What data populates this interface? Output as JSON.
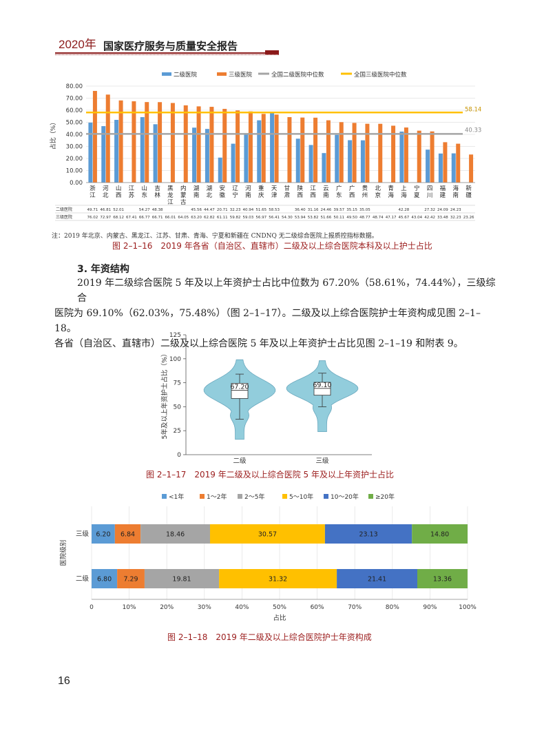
{
  "header": {
    "year": "2020年",
    "title": "国家医疗服务与质量安全报告"
  },
  "page_number": "16",
  "fig16": {
    "caption": "图 2–1–16　2019 年各省（自治区、直辖市）二级及以上综合医院本科及以上护士占比",
    "note": "注：2019 年北京、内蒙古、黑龙江、江苏、甘肃、青海、宁夏和新疆在 CNDNQ 无二级综合医院上报质控指标数据。"
  },
  "section": {
    "heading": "3. 年资结构",
    "lines": [
      "2019 年二级综合医院 5 年及以上年资护士占比中位数为 67.20%（58.61%，74.44%），三级综合",
      "医院为 69.10%（62.03%，75.48%）（图 2–1–17）。二级及以上综合医院护士年资构成见图 2–1–18。",
      "各省（自治区、直辖市）二级及以上综合医院 5 年及以上年资护士占比见图 2–1–19 和附表 9。"
    ]
  },
  "fig17": {
    "caption": "图 2–1–17　2019 年二级及以上综合医院 5 年及以上年资护士占比"
  },
  "fig18": {
    "caption": "图 2–1–18　2019 年二级及以上综合医院护士年资构成"
  },
  "colors": {
    "blue": "#5b9bd5",
    "orange": "#ed7d31",
    "gray": "#a5a5a5",
    "yellow": "#ffc000",
    "darkblue": "#4472c4",
    "green": "#70ad47",
    "violin": "#92cddc",
    "brand": "#8b1a1a"
  },
  "chart_data": [
    {
      "type": "bar",
      "title": "",
      "ylabel": "占比（%）",
      "ylim": [
        0,
        80
      ],
      "yticks": [
        "0.00",
        "10.00",
        "20.00",
        "30.00",
        "40.00",
        "50.00",
        "60.00",
        "70.00",
        "80.00"
      ],
      "categories": [
        "浙江",
        "河北",
        "山西",
        "江苏",
        "山东",
        "吉林",
        "黑龙江",
        "内蒙古",
        "湖南",
        "湖北",
        "安徽",
        "辽宁",
        "河南",
        "重庆",
        "天津",
        "甘肃",
        "陕西",
        "江西",
        "云南",
        "广东",
        "广西",
        "贵州",
        "北京",
        "青海",
        "上海",
        "宁夏",
        "四川",
        "福建",
        "海南",
        "新疆"
      ],
      "series": [
        {
          "name": "二级医院",
          "values": [
            49.71,
            46.81,
            52.01,
            null,
            54.27,
            48.38,
            null,
            null,
            45.56,
            44.47,
            20.71,
            32.23,
            40.94,
            51.65,
            58.53,
            null,
            36.4,
            31.16,
            24.46,
            39.57,
            35.15,
            35.05,
            null,
            null,
            42.28,
            null,
            27.32,
            24.09,
            24.23,
            null
          ],
          "labels": [
            "49.71",
            "46.81",
            "52.01",
            "",
            "54.27",
            "48.38",
            "",
            "",
            "45.56",
            "44.47",
            "20.71",
            "32.23",
            "40.94",
            "51.65",
            "58.53",
            "",
            "36.40",
            "31.16",
            "24.46",
            "39.57",
            "35.15",
            "35.05",
            "",
            "",
            "42.28",
            "",
            "27.32",
            "24.09",
            "24.23",
            ""
          ]
        },
        {
          "name": "三级医院",
          "values": [
            76.02,
            72.97,
            68.12,
            67.41,
            66.77,
            66.71,
            66.01,
            64.05,
            63.2,
            62.82,
            61.11,
            59.82,
            59.03,
            56.97,
            56.41,
            54.3,
            53.94,
            53.82,
            51.66,
            50.11,
            49.5,
            48.77,
            48.74,
            47.17,
            45.67,
            43.04,
            42.42,
            33.48,
            32.23,
            23.26
          ],
          "labels": [
            "76.02",
            "72.97",
            "68.12",
            "67.41",
            "66.77",
            "66.71",
            "66.01",
            "64.05",
            "63.20",
            "62.82",
            "61.11",
            "59.82",
            "59.03",
            "56.97",
            "56.41",
            "54.30",
            "53.94",
            "53.82",
            "51.66",
            "50.11",
            "49.50",
            "48.77",
            "48.74",
            "47.17",
            "45.67",
            "43.04",
            "42.42",
            "33.48",
            "32.23",
            "23.26"
          ]
        }
      ],
      "reference_lines": [
        {
          "name": "全国二级医院中位数",
          "value": 40.33,
          "label": "40.33"
        },
        {
          "name": "全国三级医院中位数",
          "value": 58.14,
          "label": "58.14"
        }
      ],
      "table_row_labels": [
        "二级医院",
        "三级医院"
      ],
      "legend": "top"
    },
    {
      "type": "violin",
      "ylabel": "5年及以上年资护士占比（%）",
      "ylim": [
        0,
        125
      ],
      "yticks": [
        "0",
        "25",
        "50",
        "75",
        "100",
        "125"
      ],
      "categories": [
        "二级",
        "三级"
      ],
      "medians": [
        67.2,
        69.1
      ],
      "median_labels": [
        "67.20",
        "69.10"
      ],
      "q1": [
        58.61,
        62.03
      ],
      "q3": [
        74.44,
        75.48
      ],
      "whisker_low": [
        37,
        50
      ],
      "whisker_high": [
        84,
        85
      ],
      "range": [
        [
          16,
          99
        ],
        [
          24,
          98
        ]
      ]
    },
    {
      "type": "stacked_bar_horizontal",
      "xlabel": "占比",
      "ylabel": "医院级别",
      "xticks": [
        "0",
        "10%",
        "20%",
        "30%",
        "40%",
        "50%",
        "60%",
        "70%",
        "80%",
        "90%",
        "100%"
      ],
      "categories": [
        "三级",
        "二级"
      ],
      "series": [
        {
          "name": "<1年",
          "values": [
            6.2,
            6.8
          ]
        },
        {
          "name": "1～2年",
          "values": [
            6.84,
            7.29
          ]
        },
        {
          "name": "2～5年",
          "values": [
            18.46,
            19.81
          ]
        },
        {
          "name": "5～10年",
          "values": [
            30.57,
            31.32
          ]
        },
        {
          "name": "10～20年",
          "values": [
            23.13,
            21.41
          ]
        },
        {
          "name": "≥20年",
          "values": [
            14.8,
            13.36
          ]
        }
      ],
      "labels": [
        [
          "6.20",
          "6.84",
          "18.46",
          "30.57",
          "23.13",
          "14.80"
        ],
        [
          "6.80",
          "7.29",
          "19.81",
          "31.32",
          "21.41",
          "13.36"
        ]
      ],
      "legend": "top"
    }
  ]
}
